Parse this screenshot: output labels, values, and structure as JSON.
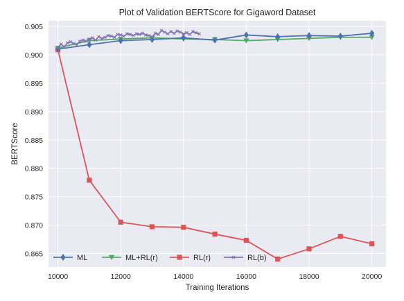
{
  "chart_data": {
    "type": "line",
    "title": "Plot of Validation BERTScore for Gigaword Dataset",
    "xlabel": "Training Iterations",
    "ylabel": "BERTScore",
    "xlim": [
      9700,
      20450
    ],
    "ylim": [
      0.8626,
      0.906
    ],
    "xticks": [
      10000,
      12000,
      14000,
      16000,
      18000,
      20000
    ],
    "yticks": [
      0.865,
      0.87,
      0.875,
      0.88,
      0.885,
      0.89,
      0.895,
      0.9,
      0.905
    ],
    "xtick_labels": [
      "10000",
      "12000",
      "14000",
      "16000",
      "18000",
      "20000"
    ],
    "ytick_labels": [
      "0.865",
      "0.870",
      "0.875",
      "0.880",
      "0.885",
      "0.890",
      "0.895",
      "0.900",
      "0.905"
    ],
    "grid": true,
    "legend_position": "bottom-left",
    "background_color": "#eaeaf2",
    "series": [
      {
        "name": "ML",
        "color": "#4c72b0",
        "marker": "diamond",
        "x": [
          10000,
          11000,
          12000,
          13000,
          14000,
          15000,
          16000,
          17000,
          18000,
          19000,
          20000
        ],
        "y": [
          0.901,
          0.9018,
          0.9025,
          0.9027,
          0.903,
          0.9026,
          0.9035,
          0.9032,
          0.9034,
          0.9033,
          0.9038
        ]
      },
      {
        "name": "ML+RL(r)",
        "color": "#55a868",
        "marker": "triangle-down",
        "x": [
          10000,
          11000,
          12000,
          13000,
          14000,
          15000,
          16000,
          17000,
          18000,
          19000,
          20000
        ],
        "y": [
          0.9012,
          0.9025,
          0.9028,
          0.903,
          0.9028,
          0.9027,
          0.9025,
          0.9027,
          0.9029,
          0.9031,
          0.9031
        ]
      },
      {
        "name": "RL(r)",
        "color": "#dd5456",
        "marker": "square",
        "x": [
          10000,
          11000,
          12000,
          13000,
          14000,
          15000,
          16000,
          17000,
          18000,
          19000,
          20000
        ],
        "y": [
          0.9009,
          0.8779,
          0.8705,
          0.8697,
          0.8696,
          0.8684,
          0.8673,
          0.864,
          0.8658,
          0.868,
          0.8667
        ]
      },
      {
        "name": "RL(b)",
        "color": "#8172b2",
        "marker": "x",
        "x": [
          10000,
          10100,
          10200,
          10300,
          10400,
          10500,
          10600,
          10700,
          10800,
          10900,
          11000,
          11100,
          11200,
          11300,
          11400,
          11500,
          11600,
          11700,
          11800,
          11900,
          12000,
          12100,
          12200,
          12300,
          12400,
          12500,
          12600,
          12700,
          12800,
          12900,
          13000,
          13100,
          13200,
          13300,
          13400,
          13500,
          13600,
          13700,
          13800,
          13900,
          14000,
          14100,
          14200,
          14300,
          14400,
          14500
        ],
        "y": [
          0.9013,
          0.9019,
          0.9014,
          0.9021,
          0.9023,
          0.902,
          0.9018,
          0.9024,
          0.9026,
          0.9024,
          0.9028,
          0.903,
          0.9026,
          0.9032,
          0.9029,
          0.9031,
          0.9034,
          0.9033,
          0.9031,
          0.9036,
          0.9035,
          0.9033,
          0.9037,
          0.9036,
          0.9034,
          0.9037,
          0.9036,
          0.9038,
          0.9035,
          0.9034,
          0.9031,
          0.9038,
          0.9036,
          0.9043,
          0.904,
          0.9037,
          0.9041,
          0.9038,
          0.9042,
          0.904,
          0.9037,
          0.9039,
          0.9036,
          0.9041,
          0.9039,
          0.9037
        ]
      }
    ]
  }
}
